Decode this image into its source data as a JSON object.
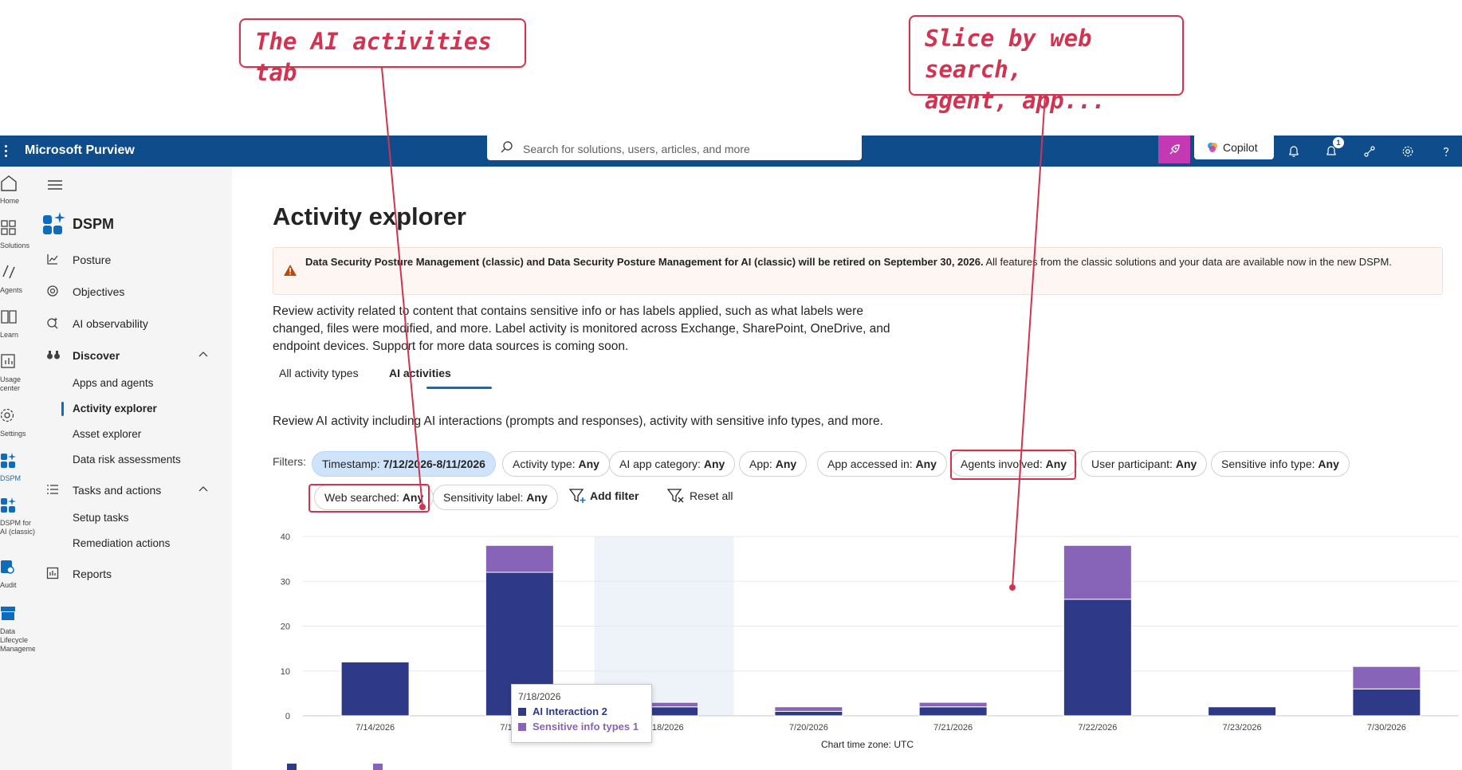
{
  "annotations": {
    "left_callout": "The AI activities tab",
    "right_callout_line1": "Slice by web search,",
    "right_callout_line2": "agent, app..."
  },
  "topbar": {
    "app_name": "Microsoft Purview",
    "search_placeholder": "Search for solutions, users, articles, and more",
    "copilot_label": "Copilot",
    "notification_count": "1",
    "colors": {
      "bar": "#0f4c8c",
      "accent_button": "#c239b3"
    }
  },
  "rail": {
    "items": [
      {
        "label": "Home",
        "icon": "home-icon"
      },
      {
        "label": "Solutions",
        "icon": "solutions-icon"
      },
      {
        "label": "Agents",
        "icon": "agents-icon"
      },
      {
        "label": "Learn",
        "icon": "learn-icon"
      },
      {
        "label": "Usage center",
        "icon": "usage-center-icon"
      },
      {
        "label": "Settings",
        "icon": "settings-icon"
      },
      {
        "label": "DSPM",
        "icon": "dspm-icon"
      },
      {
        "label": "DSPM for AI (classic)",
        "icon": "dspm-ai-icon"
      },
      {
        "label": "Audit",
        "icon": "audit-icon"
      },
      {
        "label": "Data Lifecycle Management",
        "icon": "data-lifecycle-icon"
      }
    ]
  },
  "nav": {
    "solution_title": "DSPM",
    "posture": "Posture",
    "objectives": "Objectives",
    "ai_observability": "AI observability",
    "discover": "Discover",
    "discover_items": [
      "Apps and agents",
      "Activity explorer",
      "Asset explorer",
      "Data risk assessments"
    ],
    "tasks": "Tasks and actions",
    "tasks_items": [
      "Setup tasks",
      "Remediation actions"
    ],
    "reports": "Reports"
  },
  "main": {
    "title": "Activity explorer",
    "warning_bold": "Data Security Posture Management (classic) and Data Security Posture Management for AI (classic) will be retired on September 30, 2026.",
    "warning_rest": " All features from the classic solutions and your data are available now in the new DSPM.",
    "description": "Review activity related to content that contains sensitive info or has labels applied, such as what labels were changed, files were modified, and more. Label activity is monitored across Exchange, SharePoint, OneDrive, and endpoint devices. Support for more data sources is coming soon.",
    "tabs": [
      "All activity types",
      "AI activities"
    ],
    "ai_description": "Review AI activity including AI interactions (prompts and responses), activity with sensitive info types, and more.",
    "filters_label": "Filters:",
    "filters": [
      {
        "name": "Timestamp:",
        "value": "7/12/2026-8/11/2026"
      },
      {
        "name": "Activity type:",
        "value": "Any"
      },
      {
        "name": "AI app category:",
        "value": "Any"
      },
      {
        "name": "App:",
        "value": "Any"
      },
      {
        "name": "App accessed in:",
        "value": "Any"
      },
      {
        "name": "Agents involved:",
        "value": "Any"
      },
      {
        "name": "User participant:",
        "value": "Any"
      },
      {
        "name": "Sensitive info type:",
        "value": "Any"
      },
      {
        "name": "Web searched:",
        "value": "Any"
      },
      {
        "name": "Sensitivity label:",
        "value": "Any"
      }
    ],
    "add_filter": "Add filter",
    "reset_all": "Reset all"
  },
  "chart_data": {
    "type": "bar",
    "stacked": true,
    "categories": [
      "7/14/2026",
      "7/17/2026",
      "7/18/2026",
      "7/20/2026",
      "7/21/2026",
      "7/22/2026",
      "7/23/2026",
      "7/30/2026"
    ],
    "series": [
      {
        "name": "AI Interaction",
        "color": "#2e3a87",
        "values": [
          12,
          32,
          2,
          1,
          2,
          26,
          2,
          6
        ]
      },
      {
        "name": "Sensitive info types",
        "color": "#8764b8",
        "values": [
          0,
          6,
          1,
          1,
          1,
          12,
          0,
          5
        ]
      }
    ],
    "ylim": [
      0,
      40
    ],
    "yticks": [
      0,
      10,
      20,
      30,
      40
    ],
    "grid": true,
    "highlighted_category": "7/18/2026",
    "timezone_label": "Chart time zone: UTC",
    "tooltip": {
      "date": "7/18/2026",
      "row1": "AI Interaction 2",
      "row2": "Sensitive info types 1"
    }
  }
}
